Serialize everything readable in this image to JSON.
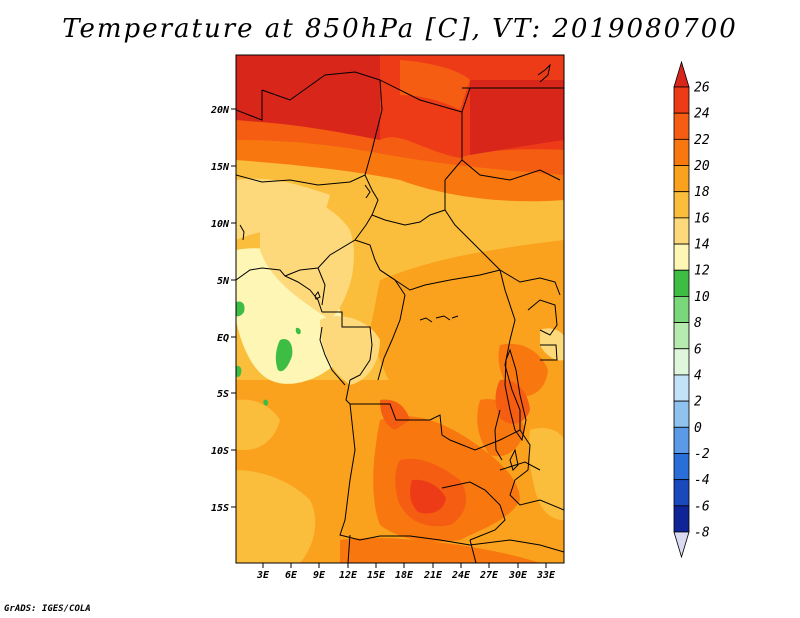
{
  "title": "Temperature at 850hPa [C], VT: 2019080700",
  "footer": "GrADS: IGES/COLA",
  "lat_labels": [
    "20N",
    "15N",
    "10N",
    "5N",
    "EQ",
    "5S",
    "10S",
    "15S"
  ],
  "lon_labels": [
    "3E",
    "6E",
    "9E",
    "12E",
    "15E",
    "18E",
    "21E",
    "24E",
    "27E",
    "30E",
    "33E"
  ],
  "colorbar": {
    "levels": [
      "26",
      "24",
      "22",
      "20",
      "18",
      "16",
      "14",
      "12",
      "10",
      "8",
      "6",
      "4",
      "2",
      "0",
      "-2",
      "-4",
      "-6",
      "-8"
    ],
    "colors": [
      "#d9261b",
      "#ee3b17",
      "#f55d13",
      "#f8780f",
      "#faa21d",
      "#fbbe3c",
      "#fdd97c",
      "#fef6b4",
      "#3ebd45",
      "#7ad87a",
      "#b5ebae",
      "#dff5dc",
      "#c2e3f7",
      "#8fc2ef",
      "#5a9ae7",
      "#2a6fd9",
      "#1a49be",
      "#0f2496",
      "#0d0f6b",
      "#dadaf2"
    ]
  }
}
